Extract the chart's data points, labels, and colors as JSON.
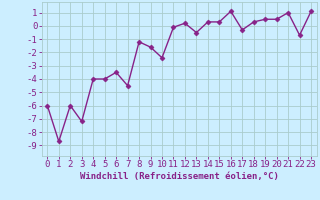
{
  "x": [
    0,
    1,
    2,
    3,
    4,
    5,
    6,
    7,
    8,
    9,
    10,
    11,
    12,
    13,
    14,
    15,
    16,
    17,
    18,
    19,
    20,
    21,
    22,
    23
  ],
  "y": [
    -6,
    -8.7,
    -6,
    -7.2,
    -4,
    -4,
    -3.5,
    -4.5,
    -1.2,
    -1.6,
    -2.4,
    -0.1,
    0.2,
    -0.5,
    0.3,
    0.3,
    1.1,
    -0.3,
    0.3,
    0.5,
    0.5,
    1.0,
    -0.7,
    1.1
  ],
  "line_color": "#882288",
  "marker": "D",
  "marker_size": 2.5,
  "line_width": 1.0,
  "bg_color": "#cceeff",
  "grid_color": "#aacccc",
  "xlabel": "Windchill (Refroidissement éolien,°C)",
  "xlabel_fontsize": 6.5,
  "xtick_labels": [
    "0",
    "1",
    "2",
    "3",
    "4",
    "5",
    "6",
    "7",
    "8",
    "9",
    "10",
    "11",
    "12",
    "13",
    "14",
    "15",
    "16",
    "17",
    "18",
    "19",
    "20",
    "21",
    "22",
    "23"
  ],
  "ytick_values": [
    1,
    0,
    -1,
    -2,
    -3,
    -4,
    -5,
    -6,
    -7,
    -8,
    -9
  ],
  "ylim": [
    -9.8,
    1.8
  ],
  "xlim": [
    -0.5,
    23.5
  ],
  "tick_fontsize": 6.5,
  "tick_color": "#882288",
  "label_color": "#882288"
}
